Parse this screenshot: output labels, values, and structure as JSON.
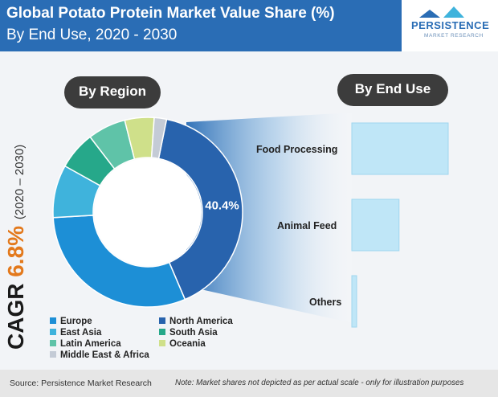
{
  "header": {
    "title_line1": "Global Potato Protein Market Value Share (%)",
    "title_line2": "By End Use, 2020 - 2030"
  },
  "logo": {
    "brand": "PERSISTENCE",
    "sub": "MARKET RESEARCH"
  },
  "cagr": {
    "label": "CAGR",
    "value": "6.8%",
    "period": "(2020 – 2030)"
  },
  "panels": {
    "region_title": "By Region",
    "end_use_title": "By End Use"
  },
  "colors": {
    "header": "#2a6db5",
    "pill": "#3c3c3c",
    "cagr_value": "#e3791c"
  },
  "chart_data": [
    {
      "type": "pie",
      "title": "By Region",
      "labels": [
        "North America",
        "Europe",
        "East Asia",
        "South Asia",
        "Latin America",
        "Oceania",
        "Middle East & Africa"
      ],
      "values": [
        40.4,
        30.5,
        9.0,
        6.5,
        6.5,
        5.0,
        2.1
      ],
      "colors": [
        "#2863ad",
        "#1d8fd6",
        "#3fb3dc",
        "#26a88a",
        "#5fc3a8",
        "#cfe08a",
        "#c4cbd6"
      ],
      "data_labels": [
        "40.4%",
        "",
        "",
        "",
        "",
        "",
        ""
      ],
      "legend": [
        {
          "label": "Europe",
          "color": "#1d8fd6"
        },
        {
          "label": "North America",
          "color": "#2863ad"
        },
        {
          "label": "East Asia",
          "color": "#3fb3dc"
        },
        {
          "label": "South Asia",
          "color": "#26a88a"
        },
        {
          "label": "Latin America",
          "color": "#5fc3a8"
        },
        {
          "label": "Oceania",
          "color": "#cfe08a"
        },
        {
          "label": "Middle East & Africa",
          "color": "#c4cbd6"
        }
      ],
      "legend_position": "bottom"
    },
    {
      "type": "bar",
      "title": "By End Use",
      "categories": [
        "Food Processing",
        "Animal Feed",
        "Others"
      ],
      "values": [
        100,
        49,
        5
      ],
      "orientation": "horizontal",
      "bar_color": "#bfe6f7"
    }
  ],
  "footer": {
    "source": "Source: Persistence Market Research",
    "note": "Note: Market shares not depicted as per actual scale - only for illustration purposes"
  }
}
